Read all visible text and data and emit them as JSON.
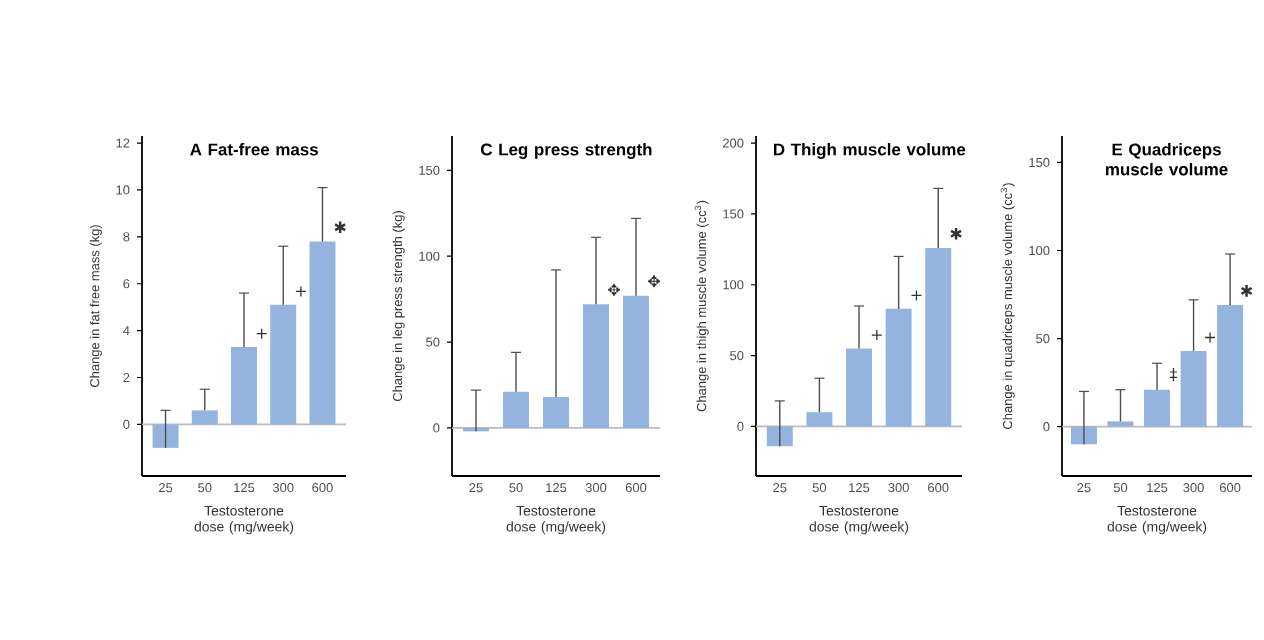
{
  "chart_data": [
    {
      "type": "bar",
      "title": "A  Fat-free mass",
      "xlabel": "Testosterone dose (mg/week)",
      "ylabel": "Change in fat free mass (kg)",
      "categories": [
        "25",
        "50",
        "125",
        "300",
        "600"
      ],
      "values": [
        -1.0,
        0.6,
        3.3,
        5.1,
        7.8
      ],
      "errors": [
        [
          -1.0,
          0.6
        ],
        [
          0.6,
          1.5
        ],
        [
          3.3,
          5.6
        ],
        [
          5.1,
          7.6
        ],
        [
          7.8,
          10.1
        ]
      ],
      "color": "#95b3df",
      "ylim": [
        -2.2,
        12.3
      ],
      "yticks": [
        0,
        2,
        4,
        6,
        8,
        10,
        12
      ],
      "ref_lines": [
        {
          "axis": "y",
          "value": 0,
          "color": "#bbbbbb"
        }
      ],
      "annotations": [
        {
          "text": "+",
          "x": "125",
          "y": 3.3
        },
        {
          "text": "+",
          "x": "300",
          "y": 5.1
        },
        {
          "text": "✱",
          "x": "600",
          "y": 7.8
        }
      ]
    },
    {
      "type": "bar",
      "title": "C  Leg press strength",
      "xlabel": "Testosterone dose (mg/week)",
      "ylabel": "Change in leg press strength (kg)",
      "categories": [
        "25",
        "50",
        "125",
        "300",
        "600"
      ],
      "values": [
        -2,
        21,
        18,
        72,
        77
      ],
      "errors": [
        [
          -2,
          22
        ],
        [
          21,
          44
        ],
        [
          18,
          92
        ],
        [
          72,
          111
        ],
        [
          77,
          122
        ]
      ],
      "color": "#95b3df",
      "ylim": [
        -28,
        170
      ],
      "yticks": [
        0,
        50,
        100,
        150
      ],
      "ref_lines": [
        {
          "axis": "y",
          "value": 0,
          "color": "#bbbbbb"
        }
      ],
      "annotations": [
        {
          "text": "✥",
          "x": "300",
          "y": 72
        },
        {
          "text": "✥",
          "x": "600",
          "y": 77
        }
      ]
    },
    {
      "type": "bar",
      "title": "D  Thigh muscle volume",
      "xlabel": "Testosterone dose (mg/week)",
      "ylabel": "Change in thigh muscle volume (cc$^{3}$)",
      "categories": [
        "25",
        "50",
        "125",
        "300",
        "600"
      ],
      "values": [
        -14,
        10,
        55,
        83,
        126
      ],
      "errors": [
        [
          -14,
          18
        ],
        [
          10,
          34
        ],
        [
          55,
          85
        ],
        [
          83,
          120
        ],
        [
          126,
          168
        ]
      ],
      "color": "#95b3df",
      "ylim": [
        -35,
        205
      ],
      "yticks": [
        0,
        50,
        100,
        150,
        200
      ],
      "ref_lines": [
        {
          "axis": "y",
          "value": 0,
          "color": "#bbbbbb"
        }
      ],
      "annotations": [
        {
          "text": "+",
          "x": "125",
          "y": 55
        },
        {
          "text": "+",
          "x": "300",
          "y": 83
        },
        {
          "text": "✱",
          "x": "600",
          "y": 126
        }
      ]
    },
    {
      "type": "bar",
      "title": "E  Quadriceps muscle volume",
      "xlabel": "Testosterone dose (mg/week)",
      "ylabel": "Change in quadriceps muscle volume (cc$^{3}$)",
      "categories": [
        "25",
        "50",
        "125",
        "300",
        "600"
      ],
      "values": [
        -10,
        3,
        21,
        43,
        69
      ],
      "errors": [
        [
          -10,
          20
        ],
        [
          3,
          21
        ],
        [
          21,
          36
        ],
        [
          43,
          72
        ],
        [
          69,
          98
        ]
      ],
      "color": "#95b3df",
      "ylim": [
        -28,
        165
      ],
      "yticks": [
        0,
        50,
        100,
        150
      ],
      "ref_lines": [
        {
          "axis": "y",
          "value": 0,
          "color": "#bbbbbb"
        }
      ],
      "annotations": [
        {
          "text": "‡",
          "x": "125",
          "y": 21
        },
        {
          "text": "+",
          "x": "300",
          "y": 43
        },
        {
          "text": "✱",
          "x": "600",
          "y": 69
        }
      ]
    }
  ]
}
